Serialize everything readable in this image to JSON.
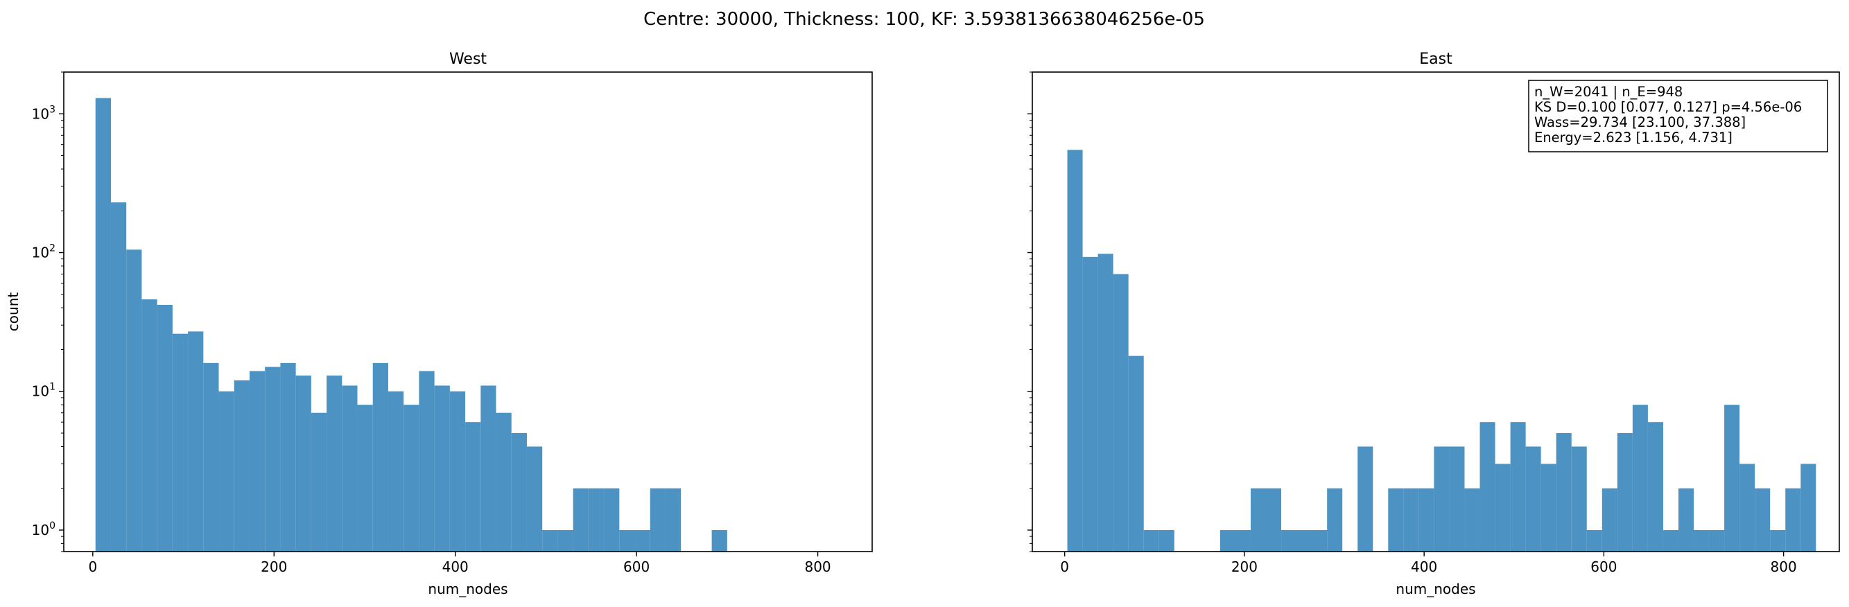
{
  "chart_data": {
    "title": "Centre: 30000, Thickness: 100, KF: 3.5938136638046256e-05",
    "panels": [
      {
        "type": "bar",
        "title": "West",
        "xlabel": "num_nodes",
        "ylabel": "count",
        "yscale": "log",
        "xlim": [
          -32,
          860
        ],
        "ylim": [
          0.7,
          2000
        ],
        "xticks": [
          "0",
          "200",
          "400",
          "600",
          "800"
        ],
        "bins": [
          {
            "x0": 3,
            "x1": 20,
            "count": 1300
          },
          {
            "x0": 20,
            "x1": 37,
            "count": 230
          },
          {
            "x0": 37,
            "x1": 54,
            "count": 105
          },
          {
            "x0": 54,
            "x1": 71,
            "count": 46
          },
          {
            "x0": 71,
            "x1": 88,
            "count": 42
          },
          {
            "x0": 88,
            "x1": 105,
            "count": 26
          },
          {
            "x0": 105,
            "x1": 122,
            "count": 27
          },
          {
            "x0": 122,
            "x1": 139,
            "count": 16
          },
          {
            "x0": 139,
            "x1": 156,
            "count": 10
          },
          {
            "x0": 156,
            "x1": 173,
            "count": 12
          },
          {
            "x0": 173,
            "x1": 190,
            "count": 14
          },
          {
            "x0": 190,
            "x1": 207,
            "count": 15
          },
          {
            "x0": 207,
            "x1": 224,
            "count": 16
          },
          {
            "x0": 224,
            "x1": 241,
            "count": 13
          },
          {
            "x0": 241,
            "x1": 258,
            "count": 7
          },
          {
            "x0": 258,
            "x1": 275,
            "count": 13
          },
          {
            "x0": 275,
            "x1": 292,
            "count": 11
          },
          {
            "x0": 292,
            "x1": 309,
            "count": 8
          },
          {
            "x0": 309,
            "x1": 326,
            "count": 16
          },
          {
            "x0": 326,
            "x1": 343,
            "count": 10
          },
          {
            "x0": 343,
            "x1": 360,
            "count": 8
          },
          {
            "x0": 360,
            "x1": 377,
            "count": 14
          },
          {
            "x0": 377,
            "x1": 394,
            "count": 11
          },
          {
            "x0": 394,
            "x1": 411,
            "count": 10
          },
          {
            "x0": 411,
            "x1": 428,
            "count": 6
          },
          {
            "x0": 428,
            "x1": 445,
            "count": 11
          },
          {
            "x0": 445,
            "x1": 462,
            "count": 7
          },
          {
            "x0": 462,
            "x1": 479,
            "count": 5
          },
          {
            "x0": 479,
            "x1": 496,
            "count": 4
          },
          {
            "x0": 496,
            "x1": 513,
            "count": 1
          },
          {
            "x0": 513,
            "x1": 530,
            "count": 1
          },
          {
            "x0": 530,
            "x1": 547,
            "count": 2
          },
          {
            "x0": 547,
            "x1": 564,
            "count": 2
          },
          {
            "x0": 564,
            "x1": 581,
            "count": 2
          },
          {
            "x0": 581,
            "x1": 598,
            "count": 1
          },
          {
            "x0": 598,
            "x1": 615,
            "count": 1
          },
          {
            "x0": 615,
            "x1": 632,
            "count": 2
          },
          {
            "x0": 632,
            "x1": 649,
            "count": 2
          },
          {
            "x0": 683,
            "x1": 700,
            "count": 1
          }
        ]
      },
      {
        "type": "bar",
        "title": "East",
        "xlabel": "num_nodes",
        "ylabel": "",
        "yscale": "log",
        "xlim": [
          -36,
          862
        ],
        "ylim": [
          0.7,
          2000
        ],
        "xticks": [
          "0",
          "200",
          "400",
          "600",
          "800"
        ],
        "annotation": [
          "n_W=2041 | n_E=948",
          "KS D=0.100 [0.077, 0.127]  p=4.56e-06",
          "Wass=29.734 [23.100, 37.388]",
          "Energy=2.623 [1.156, 4.731]"
        ],
        "bins": [
          {
            "x0": 3,
            "x1": 20,
            "count": 550
          },
          {
            "x0": 20,
            "x1": 37,
            "count": 93
          },
          {
            "x0": 37,
            "x1": 54,
            "count": 98
          },
          {
            "x0": 54,
            "x1": 71,
            "count": 70
          },
          {
            "x0": 71,
            "x1": 88,
            "count": 18
          },
          {
            "x0": 88,
            "x1": 105,
            "count": 1
          },
          {
            "x0": 105,
            "x1": 122,
            "count": 1
          },
          {
            "x0": 173,
            "x1": 207,
            "count": 1
          },
          {
            "x0": 207,
            "x1": 241,
            "count": 2
          },
          {
            "x0": 241,
            "x1": 292,
            "count": 1
          },
          {
            "x0": 292,
            "x1": 309,
            "count": 2
          },
          {
            "x0": 326,
            "x1": 343,
            "count": 4
          },
          {
            "x0": 360,
            "x1": 377,
            "count": 2
          },
          {
            "x0": 377,
            "x1": 394,
            "count": 2
          },
          {
            "x0": 394,
            "x1": 411,
            "count": 2
          },
          {
            "x0": 411,
            "x1": 428,
            "count": 4
          },
          {
            "x0": 428,
            "x1": 445,
            "count": 4
          },
          {
            "x0": 445,
            "x1": 462,
            "count": 2
          },
          {
            "x0": 462,
            "x1": 479,
            "count": 6
          },
          {
            "x0": 479,
            "x1": 496,
            "count": 3
          },
          {
            "x0": 496,
            "x1": 513,
            "count": 6
          },
          {
            "x0": 513,
            "x1": 530,
            "count": 4
          },
          {
            "x0": 530,
            "x1": 547,
            "count": 3
          },
          {
            "x0": 547,
            "x1": 564,
            "count": 5
          },
          {
            "x0": 564,
            "x1": 581,
            "count": 4
          },
          {
            "x0": 581,
            "x1": 598,
            "count": 1
          },
          {
            "x0": 598,
            "x1": 615,
            "count": 2
          },
          {
            "x0": 615,
            "x1": 632,
            "count": 5
          },
          {
            "x0": 632,
            "x1": 649,
            "count": 8
          },
          {
            "x0": 649,
            "x1": 666,
            "count": 6
          },
          {
            "x0": 666,
            "x1": 683,
            "count": 1
          },
          {
            "x0": 683,
            "x1": 700,
            "count": 2
          },
          {
            "x0": 700,
            "x1": 717,
            "count": 1
          },
          {
            "x0": 717,
            "x1": 734,
            "count": 1
          },
          {
            "x0": 734,
            "x1": 751,
            "count": 8
          },
          {
            "x0": 751,
            "x1": 768,
            "count": 3
          },
          {
            "x0": 768,
            "x1": 785,
            "count": 2
          },
          {
            "x0": 785,
            "x1": 802,
            "count": 1
          },
          {
            "x0": 802,
            "x1": 819,
            "count": 2
          },
          {
            "x0": 819,
            "x1": 836,
            "count": 3
          }
        ]
      }
    ],
    "style": {
      "bar_color": "#4c93c3"
    }
  }
}
